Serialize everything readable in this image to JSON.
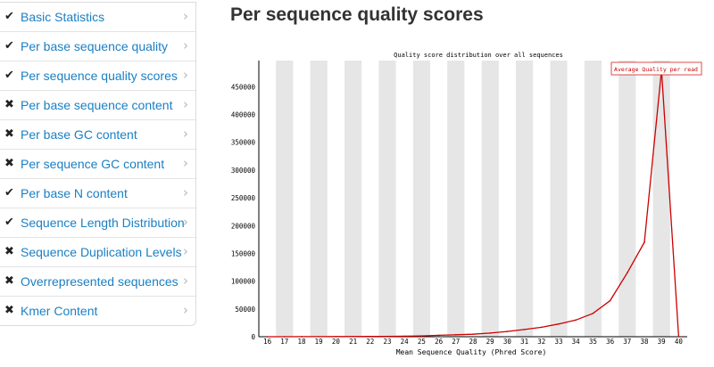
{
  "sidebar": {
    "items": [
      {
        "label": "Basic Statistics",
        "status": "pass",
        "status_icon": "check-icon"
      },
      {
        "label": "Per base sequence quality",
        "status": "pass",
        "status_icon": "check-icon"
      },
      {
        "label": "Per sequence quality scores",
        "status": "pass",
        "status_icon": "check-icon"
      },
      {
        "label": "Per base sequence content",
        "status": "fail",
        "status_icon": "cross-icon"
      },
      {
        "label": "Per base GC content",
        "status": "fail",
        "status_icon": "cross-icon"
      },
      {
        "label": "Per sequence GC content",
        "status": "fail",
        "status_icon": "cross-icon"
      },
      {
        "label": "Per base N content",
        "status": "pass",
        "status_icon": "check-icon"
      },
      {
        "label": "Sequence Length Distribution",
        "status": "pass",
        "status_icon": "check-icon"
      },
      {
        "label": "Sequence Duplication Levels",
        "status": "fail",
        "status_icon": "cross-icon"
      },
      {
        "label": "Overrepresented sequences",
        "status": "fail",
        "status_icon": "cross-icon"
      },
      {
        "label": "Kmer Content",
        "status": "fail",
        "status_icon": "cross-icon"
      }
    ],
    "chevron_icon": "chevron-right-icon"
  },
  "main": {
    "title": "Per sequence quality scores"
  },
  "colors": {
    "link": "#1a7fc4",
    "line": "#cc0000",
    "band": "#e6e6e6"
  },
  "chart_data": {
    "type": "line",
    "title": "Quality score distribution over all sequences",
    "xlabel": "Mean Sequence Quality (Phred Score)",
    "ylabel": "",
    "categories": [
      16,
      17,
      18,
      19,
      20,
      21,
      22,
      23,
      24,
      25,
      26,
      27,
      28,
      29,
      30,
      31,
      32,
      33,
      34,
      35,
      36,
      37,
      38,
      39,
      40
    ],
    "x_tick_labels": [
      "16",
      "17",
      "18",
      "19",
      "20",
      "21",
      "22",
      "23",
      "24",
      "25",
      "26",
      "27",
      "28",
      "29",
      "30",
      "31",
      "32",
      "33",
      "34",
      "35",
      "36",
      "37",
      "38",
      "39",
      "40"
    ],
    "y_ticks": [
      0,
      50000,
      100000,
      150000,
      200000,
      250000,
      300000,
      350000,
      400000,
      450000
    ],
    "y_tick_labels": [
      "0",
      "50000",
      "100000",
      "150000",
      "200000",
      "250000",
      "300000",
      "350000",
      "400000",
      "450000"
    ],
    "ylim": [
      0,
      497000
    ],
    "legend": "top-right",
    "grid": false,
    "alternating_bands": true,
    "series": [
      {
        "name": "Average Quality per read",
        "values": [
          0,
          0,
          100,
          200,
          300,
          400,
          500,
          700,
          1000,
          1500,
          2500,
          3500,
          4500,
          6500,
          9500,
          13000,
          17000,
          23000,
          30000,
          42000,
          65000,
          115000,
          170000,
          480000,
          0
        ]
      }
    ]
  }
}
